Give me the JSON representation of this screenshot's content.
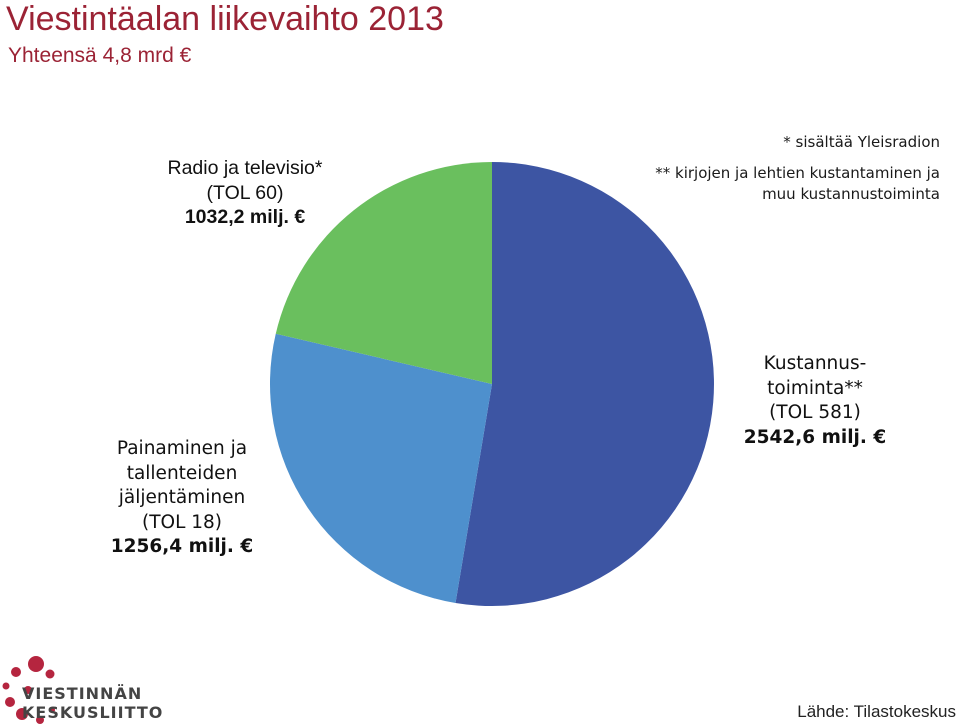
{
  "title": "Viestintäalan liikevaihto 2013",
  "subtitle": "Yhteensä 4,8 mrd €",
  "notes": {
    "note1": "* sisältää Yleisradion",
    "note2_line1": "** kirjojen ja lehtien kustantaminen ja",
    "note2_line2": "muu kustannustoiminta"
  },
  "chart_data": {
    "type": "pie",
    "slices": [
      {
        "label_lines": [
          "Kustannus-",
          "toiminta**",
          "(TOL 581)"
        ],
        "value_text": "2542,6 milj. €",
        "value": 2542.6,
        "color": "#3d55a3"
      },
      {
        "label_lines": [
          "Painaminen ja",
          "tallenteiden",
          "jäljentäminen",
          "(TOL 18)"
        ],
        "value_text": "1256,4 milj. €",
        "value": 1256.4,
        "color": "#4e90cd"
      },
      {
        "label_lines": [
          "Radio ja televisio*",
          "(TOL 60)"
        ],
        "value_text": "1032,2 milj. €",
        "value": 1032.2,
        "color": "#6abf5e"
      }
    ]
  },
  "logo": {
    "line1": "VIESTINNÄN",
    "line2": "KESKUSLIITTO",
    "dot_color": "#b5253f"
  },
  "source": "Lähde: Tilastokeskus"
}
